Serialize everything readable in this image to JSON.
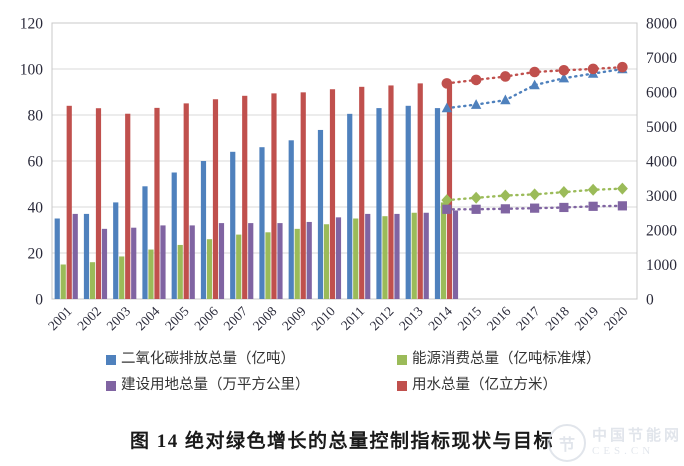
{
  "figure": {
    "caption": "图 14 绝对绿色增长的总量控制指标现状与目标"
  },
  "watermark": {
    "logo_char": "节",
    "name": "中国节能网",
    "domain": "CES.CN"
  },
  "chart_data": {
    "type": "bar",
    "title": "图 14 绝对绿色增长的总量控制指标现状与目标",
    "xlabel": "",
    "ylabel_left": "",
    "ylabel_right": "",
    "grid": true,
    "legend_position": "bottom",
    "categories": [
      "2001",
      "2002",
      "2003",
      "2004",
      "2005",
      "2006",
      "2007",
      "2008",
      "2009",
      "2010",
      "2011",
      "2012",
      "2013",
      "2014",
      "2015",
      "2016",
      "2017",
      "2018",
      "2019",
      "2020"
    ],
    "bar_years": [
      "2001",
      "2002",
      "2003",
      "2004",
      "2005",
      "2006",
      "2007",
      "2008",
      "2009",
      "2010",
      "2011",
      "2012",
      "2013",
      "2014"
    ],
    "projection_years": [
      "2014",
      "2015",
      "2016",
      "2017",
      "2018",
      "2019",
      "2020"
    ],
    "left_axis": {
      "min": 0,
      "max": 120,
      "ticks": [
        0,
        20,
        40,
        60,
        80,
        100,
        120
      ]
    },
    "right_axis": {
      "min": 0,
      "max": 8000,
      "ticks": [
        0,
        1000,
        2000,
        3000,
        4000,
        5000,
        6000,
        7000,
        8000
      ]
    },
    "series": [
      {
        "id": "co2",
        "name": "二氧化碳排放总量（亿吨）",
        "color": "#4f81bd",
        "axis": "left",
        "marker": "triangle",
        "bar_values": [
          35,
          37,
          42,
          49,
          55,
          60,
          64,
          66,
          69,
          73.5,
          80.5,
          83,
          84,
          83
        ],
        "projection_values": [
          83,
          84.5,
          86.5,
          93,
          96,
          98,
          100
        ]
      },
      {
        "id": "energy",
        "name": "能源消费总量（亿吨标准煤）",
        "color": "#9bbb59",
        "axis": "left",
        "marker": "diamond",
        "bar_values": [
          15,
          16,
          18.5,
          21.5,
          23.5,
          26,
          28,
          29,
          30.5,
          32.5,
          35,
          36,
          37.5,
          42
        ],
        "projection_values": [
          43,
          44,
          45,
          45.5,
          46.5,
          47.5,
          48
        ]
      },
      {
        "id": "water",
        "name": "用水总量（亿立方米）",
        "color": "#c0504d",
        "axis": "right",
        "marker": "circle",
        "bar_values": [
          5600,
          5530,
          5370,
          5540,
          5670,
          5790,
          5890,
          5960,
          5990,
          6080,
          6150,
          6190,
          6250,
          6250
        ],
        "projection_values": [
          6250,
          6350,
          6450,
          6580,
          6630,
          6670,
          6720
        ]
      },
      {
        "id": "land",
        "name": "建设用地总量（万平方公里）",
        "color": "#8064a2",
        "axis": "left",
        "marker": "square",
        "bar_values": [
          37,
          30.5,
          31,
          32,
          32,
          33,
          33,
          33,
          33.5,
          35.5,
          37,
          37,
          37.5,
          38.5
        ],
        "projection_values": [
          39,
          39,
          39.2,
          39.5,
          39.8,
          40.3,
          40.5
        ]
      }
    ],
    "legend": [
      {
        "series_id": "co2",
        "label": "二氧化碳排放总量（亿吨）",
        "color": "#4f81bd"
      },
      {
        "series_id": "energy",
        "label": "能源消费总量（亿吨标准煤）",
        "color": "#9bbb59"
      },
      {
        "series_id": "land",
        "label": "建设用地总量（万平方公里）",
        "color": "#8064a2"
      },
      {
        "series_id": "water",
        "label": "用水总量（亿立方米）",
        "color": "#c0504d"
      }
    ],
    "style": {
      "gridline_color": "#d9d9d9",
      "border_color": "#c8c8c8",
      "axis_text_color": "#2a2a3a"
    }
  }
}
